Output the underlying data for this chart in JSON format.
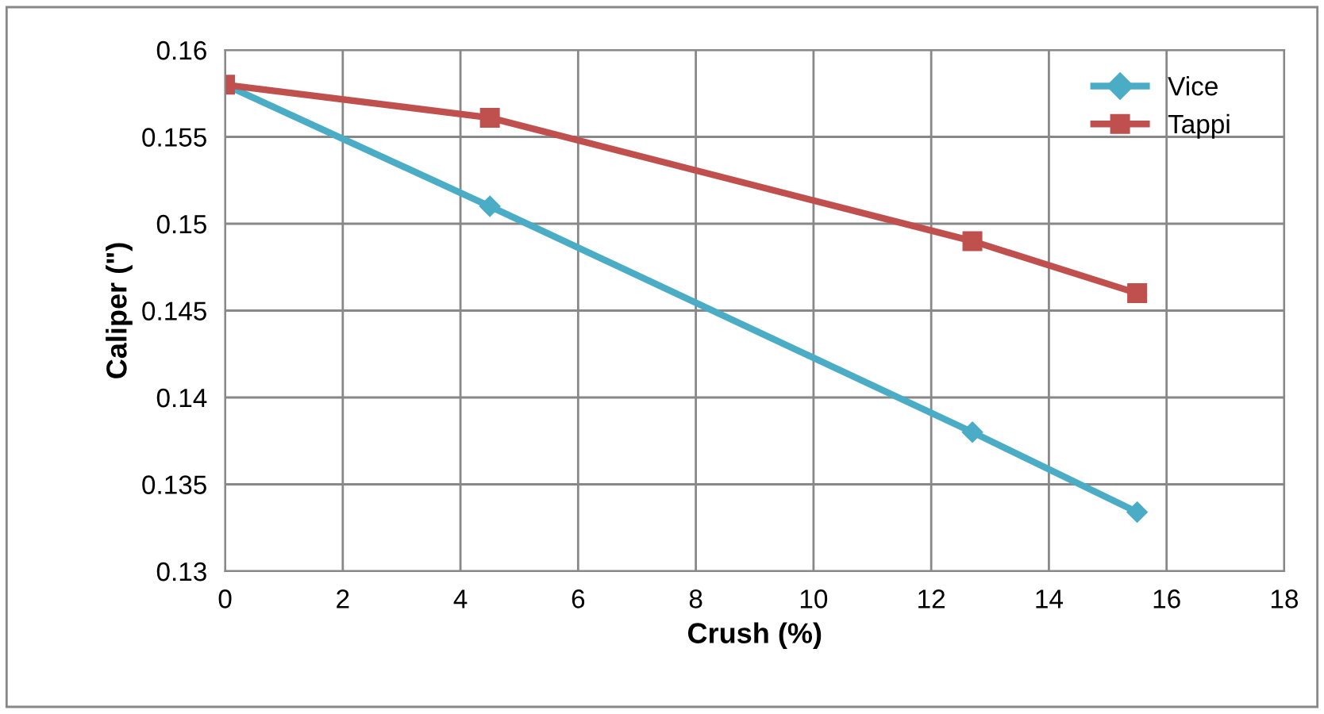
{
  "chart_data": {
    "type": "line",
    "xlabel": "Crush (%)",
    "ylabel": "Caliper (\")",
    "xlim": [
      0,
      18
    ],
    "xticks": [
      0,
      2,
      4,
      6,
      8,
      10,
      12,
      14,
      16,
      18
    ],
    "ylim": [
      0.13,
      0.16
    ],
    "yticks": [
      0.13,
      0.135,
      0.14,
      0.145,
      0.15,
      0.155,
      0.16
    ],
    "grid": true,
    "legend": "top right",
    "line_style": "solid",
    "series": [
      {
        "name": "Vice",
        "color": "#4bacc6",
        "marker": "diamond",
        "x": [
          0,
          4.5,
          12.7,
          15.5
        ],
        "values": [
          0.158,
          0.151,
          0.138,
          0.1334
        ]
      },
      {
        "name": "Tappi",
        "color": "#c0504d",
        "marker": "square",
        "x": [
          0,
          4.5,
          12.7,
          15.5
        ],
        "values": [
          0.158,
          0.1561,
          0.149,
          0.146
        ]
      }
    ]
  }
}
